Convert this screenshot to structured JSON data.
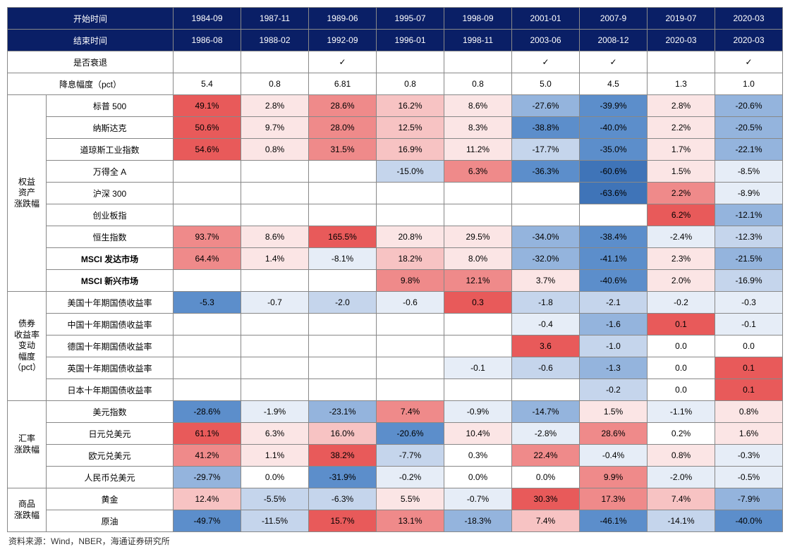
{
  "colors": {
    "header_bg": "#0a1f66",
    "header_fg": "#ffffff",
    "border": "#888888",
    "heatmap": {
      "deep_red": "#e85a5a",
      "mid_red": "#ef8a8a",
      "light_red": "#f7c3c3",
      "pale_red": "#fbe5e5",
      "white": "#ffffff",
      "pale_blue": "#e6edf7",
      "light_blue": "#c5d5ec",
      "mid_blue": "#94b4dd",
      "deep_blue": "#5c8ecb",
      "darker_blue": "#3f74b8"
    }
  },
  "header": {
    "start_label": "开始时间",
    "end_label": "结束时间",
    "start_vals": [
      "1984-09",
      "1987-11",
      "1989-06",
      "1995-07",
      "1998-09",
      "2001-01",
      "2007-9",
      "2019-07",
      "2020-03"
    ],
    "end_vals": [
      "1986-08",
      "1988-02",
      "1992-09",
      "1996-01",
      "1998-11",
      "2003-06",
      "2008-12",
      "2020-03",
      "2020-03"
    ]
  },
  "recession_row": {
    "label": "是否衰退",
    "vals": [
      "",
      "",
      "✓",
      "",
      "",
      "✓",
      "✓",
      "",
      "✓"
    ]
  },
  "cut_row": {
    "label": "降息幅度（pct）",
    "vals": [
      "5.4",
      "0.8",
      "6.81",
      "0.8",
      "0.8",
      "5.0",
      "4.5",
      "1.3",
      "1.0"
    ]
  },
  "groups": [
    {
      "name": "权益\n资产\n涨跌幅",
      "rows": [
        {
          "label": "标普 500",
          "cells": [
            {
              "v": "49.1%",
              "c": "deep_red"
            },
            {
              "v": "2.8%",
              "c": "pale_red"
            },
            {
              "v": "28.6%",
              "c": "mid_red"
            },
            {
              "v": "16.2%",
              "c": "light_red"
            },
            {
              "v": "8.6%",
              "c": "pale_red"
            },
            {
              "v": "-27.6%",
              "c": "mid_blue"
            },
            {
              "v": "-39.9%",
              "c": "deep_blue"
            },
            {
              "v": "2.8%",
              "c": "pale_red"
            },
            {
              "v": "-20.6%",
              "c": "mid_blue"
            }
          ]
        },
        {
          "label": "纳斯达克",
          "cells": [
            {
              "v": "50.6%",
              "c": "deep_red"
            },
            {
              "v": "9.7%",
              "c": "pale_red"
            },
            {
              "v": "28.0%",
              "c": "mid_red"
            },
            {
              "v": "12.5%",
              "c": "light_red"
            },
            {
              "v": "8.3%",
              "c": "pale_red"
            },
            {
              "v": "-38.8%",
              "c": "deep_blue"
            },
            {
              "v": "-40.0%",
              "c": "deep_blue"
            },
            {
              "v": "2.2%",
              "c": "pale_red"
            },
            {
              "v": "-20.5%",
              "c": "mid_blue"
            }
          ]
        },
        {
          "label": "道琼斯工业指数",
          "cells": [
            {
              "v": "54.6%",
              "c": "deep_red"
            },
            {
              "v": "0.8%",
              "c": "pale_red"
            },
            {
              "v": "31.5%",
              "c": "mid_red"
            },
            {
              "v": "16.9%",
              "c": "light_red"
            },
            {
              "v": "11.2%",
              "c": "pale_red"
            },
            {
              "v": "-17.7%",
              "c": "light_blue"
            },
            {
              "v": "-35.0%",
              "c": "deep_blue"
            },
            {
              "v": "1.7%",
              "c": "pale_red"
            },
            {
              "v": "-22.1%",
              "c": "mid_blue"
            }
          ]
        },
        {
          "label": "万得全 A",
          "cells": [
            {
              "v": "",
              "c": "white"
            },
            {
              "v": "",
              "c": "white"
            },
            {
              "v": "",
              "c": "white"
            },
            {
              "v": "-15.0%",
              "c": "light_blue"
            },
            {
              "v": "6.3%",
              "c": "mid_red"
            },
            {
              "v": "-36.3%",
              "c": "deep_blue"
            },
            {
              "v": "-60.6%",
              "c": "darker_blue"
            },
            {
              "v": "1.5%",
              "c": "pale_red"
            },
            {
              "v": "-8.5%",
              "c": "pale_blue"
            }
          ]
        },
        {
          "label": "沪深 300",
          "cells": [
            {
              "v": "",
              "c": "white"
            },
            {
              "v": "",
              "c": "white"
            },
            {
              "v": "",
              "c": "white"
            },
            {
              "v": "",
              "c": "white"
            },
            {
              "v": "",
              "c": "white"
            },
            {
              "v": "",
              "c": "white"
            },
            {
              "v": "-63.6%",
              "c": "darker_blue"
            },
            {
              "v": "2.2%",
              "c": "mid_red"
            },
            {
              "v": "-8.9%",
              "c": "pale_blue"
            }
          ]
        },
        {
          "label": "创业板指",
          "cells": [
            {
              "v": "",
              "c": "white"
            },
            {
              "v": "",
              "c": "white"
            },
            {
              "v": "",
              "c": "white"
            },
            {
              "v": "",
              "c": "white"
            },
            {
              "v": "",
              "c": "white"
            },
            {
              "v": "",
              "c": "white"
            },
            {
              "v": "",
              "c": "white"
            },
            {
              "v": "6.2%",
              "c": "deep_red"
            },
            {
              "v": "-12.1%",
              "c": "mid_blue"
            }
          ]
        },
        {
          "label": "恒生指数",
          "cells": [
            {
              "v": "93.7%",
              "c": "mid_red"
            },
            {
              "v": "8.6%",
              "c": "pale_red"
            },
            {
              "v": "165.5%",
              "c": "deep_red"
            },
            {
              "v": "20.8%",
              "c": "pale_red"
            },
            {
              "v": "29.5%",
              "c": "pale_red"
            },
            {
              "v": "-34.0%",
              "c": "mid_blue"
            },
            {
              "v": "-38.4%",
              "c": "deep_blue"
            },
            {
              "v": "-2.4%",
              "c": "pale_blue"
            },
            {
              "v": "-12.3%",
              "c": "light_blue"
            }
          ]
        },
        {
          "label": "MSCI 发达市场",
          "bold": true,
          "cells": [
            {
              "v": "64.4%",
              "c": "mid_red"
            },
            {
              "v": "1.4%",
              "c": "pale_red"
            },
            {
              "v": "-8.1%",
              "c": "pale_blue"
            },
            {
              "v": "18.2%",
              "c": "light_red"
            },
            {
              "v": "8.0%",
              "c": "pale_red"
            },
            {
              "v": "-32.0%",
              "c": "mid_blue"
            },
            {
              "v": "-41.1%",
              "c": "deep_blue"
            },
            {
              "v": "2.3%",
              "c": "pale_red"
            },
            {
              "v": "-21.5%",
              "c": "mid_blue"
            }
          ]
        },
        {
          "label": "MSCI 新兴市场",
          "bold": true,
          "cells": [
            {
              "v": "",
              "c": "white"
            },
            {
              "v": "",
              "c": "white"
            },
            {
              "v": "",
              "c": "white"
            },
            {
              "v": "9.8%",
              "c": "mid_red"
            },
            {
              "v": "12.1%",
              "c": "mid_red"
            },
            {
              "v": "3.7%",
              "c": "pale_red"
            },
            {
              "v": "-40.6%",
              "c": "deep_blue"
            },
            {
              "v": "2.0%",
              "c": "pale_red"
            },
            {
              "v": "-16.9%",
              "c": "light_blue"
            }
          ]
        }
      ]
    },
    {
      "name": "债券\n收益率\n变动\n幅度\n（pct）",
      "rows": [
        {
          "label": "美国十年期国债收益率",
          "cells": [
            {
              "v": "-5.3",
              "c": "deep_blue"
            },
            {
              "v": "-0.7",
              "c": "pale_blue"
            },
            {
              "v": "-2.0",
              "c": "light_blue"
            },
            {
              "v": "-0.6",
              "c": "pale_blue"
            },
            {
              "v": "0.3",
              "c": "deep_red"
            },
            {
              "v": "-1.8",
              "c": "light_blue"
            },
            {
              "v": "-2.1",
              "c": "light_blue"
            },
            {
              "v": "-0.2",
              "c": "pale_blue"
            },
            {
              "v": "-0.3",
              "c": "pale_blue"
            }
          ]
        },
        {
          "label": "中国十年期国债收益率",
          "cells": [
            {
              "v": "",
              "c": "white"
            },
            {
              "v": "",
              "c": "white"
            },
            {
              "v": "",
              "c": "white"
            },
            {
              "v": "",
              "c": "white"
            },
            {
              "v": "",
              "c": "white"
            },
            {
              "v": "-0.4",
              "c": "pale_blue"
            },
            {
              "v": "-1.6",
              "c": "mid_blue"
            },
            {
              "v": "0.1",
              "c": "deep_red"
            },
            {
              "v": "-0.1",
              "c": "pale_blue"
            }
          ]
        },
        {
          "label": "德国十年期国债收益率",
          "cells": [
            {
              "v": "",
              "c": "white"
            },
            {
              "v": "",
              "c": "white"
            },
            {
              "v": "",
              "c": "white"
            },
            {
              "v": "",
              "c": "white"
            },
            {
              "v": "",
              "c": "white"
            },
            {
              "v": "3.6",
              "c": "deep_red"
            },
            {
              "v": "-1.0",
              "c": "light_blue"
            },
            {
              "v": "0.0",
              "c": "white"
            },
            {
              "v": "0.0",
              "c": "white"
            }
          ]
        },
        {
          "label": "英国十年期国债收益率",
          "cells": [
            {
              "v": "",
              "c": "white"
            },
            {
              "v": "",
              "c": "white"
            },
            {
              "v": "",
              "c": "white"
            },
            {
              "v": "",
              "c": "white"
            },
            {
              "v": "-0.1",
              "c": "pale_blue"
            },
            {
              "v": "-0.6",
              "c": "light_blue"
            },
            {
              "v": "-1.3",
              "c": "mid_blue"
            },
            {
              "v": "0.0",
              "c": "white"
            },
            {
              "v": "0.1",
              "c": "deep_red"
            }
          ]
        },
        {
          "label": "日本十年期国债收益率",
          "cells": [
            {
              "v": "",
              "c": "white"
            },
            {
              "v": "",
              "c": "white"
            },
            {
              "v": "",
              "c": "white"
            },
            {
              "v": "",
              "c": "white"
            },
            {
              "v": "",
              "c": "white"
            },
            {
              "v": "",
              "c": "white"
            },
            {
              "v": "-0.2",
              "c": "light_blue"
            },
            {
              "v": "0.0",
              "c": "white"
            },
            {
              "v": "0.1",
              "c": "deep_red"
            }
          ]
        }
      ]
    },
    {
      "name": "汇率\n涨跌幅",
      "rows": [
        {
          "label": "美元指数",
          "cells": [
            {
              "v": "-28.6%",
              "c": "deep_blue"
            },
            {
              "v": "-1.9%",
              "c": "pale_blue"
            },
            {
              "v": "-23.1%",
              "c": "mid_blue"
            },
            {
              "v": "7.4%",
              "c": "mid_red"
            },
            {
              "v": "-0.9%",
              "c": "pale_blue"
            },
            {
              "v": "-14.7%",
              "c": "mid_blue"
            },
            {
              "v": "1.5%",
              "c": "pale_red"
            },
            {
              "v": "-1.1%",
              "c": "pale_blue"
            },
            {
              "v": "0.8%",
              "c": "pale_red"
            }
          ]
        },
        {
          "label": "日元兑美元",
          "cells": [
            {
              "v": "61.1%",
              "c": "deep_red"
            },
            {
              "v": "6.3%",
              "c": "pale_red"
            },
            {
              "v": "16.0%",
              "c": "light_red"
            },
            {
              "v": "-20.6%",
              "c": "deep_blue"
            },
            {
              "v": "10.4%",
              "c": "pale_red"
            },
            {
              "v": "-2.8%",
              "c": "pale_blue"
            },
            {
              "v": "28.6%",
              "c": "mid_red"
            },
            {
              "v": "0.2%",
              "c": "white"
            },
            {
              "v": "1.6%",
              "c": "pale_red"
            }
          ]
        },
        {
          "label": "欧元兑美元",
          "cells": [
            {
              "v": "41.2%",
              "c": "mid_red"
            },
            {
              "v": "1.1%",
              "c": "pale_red"
            },
            {
              "v": "38.2%",
              "c": "deep_red"
            },
            {
              "v": "-7.7%",
              "c": "light_blue"
            },
            {
              "v": "0.3%",
              "c": "white"
            },
            {
              "v": "22.4%",
              "c": "mid_red"
            },
            {
              "v": "-0.4%",
              "c": "pale_blue"
            },
            {
              "v": "0.8%",
              "c": "pale_red"
            },
            {
              "v": "-0.3%",
              "c": "pale_blue"
            }
          ]
        },
        {
          "label": "人民币兑美元",
          "cells": [
            {
              "v": "-29.7%",
              "c": "mid_blue"
            },
            {
              "v": "0.0%",
              "c": "white"
            },
            {
              "v": "-31.9%",
              "c": "deep_blue"
            },
            {
              "v": "-0.2%",
              "c": "pale_blue"
            },
            {
              "v": "0.0%",
              "c": "white"
            },
            {
              "v": "0.0%",
              "c": "white"
            },
            {
              "v": "9.9%",
              "c": "mid_red"
            },
            {
              "v": "-2.0%",
              "c": "pale_blue"
            },
            {
              "v": "-0.5%",
              "c": "pale_blue"
            }
          ]
        }
      ]
    },
    {
      "name": "商品\n涨跌幅",
      "rows": [
        {
          "label": "黄金",
          "cells": [
            {
              "v": "12.4%",
              "c": "light_red"
            },
            {
              "v": "-5.5%",
              "c": "light_blue"
            },
            {
              "v": "-6.3%",
              "c": "light_blue"
            },
            {
              "v": "5.5%",
              "c": "pale_red"
            },
            {
              "v": "-0.7%",
              "c": "pale_blue"
            },
            {
              "v": "30.3%",
              "c": "deep_red"
            },
            {
              "v": "17.3%",
              "c": "mid_red"
            },
            {
              "v": "7.4%",
              "c": "light_red"
            },
            {
              "v": "-7.9%",
              "c": "mid_blue"
            }
          ]
        },
        {
          "label": "原油",
          "cells": [
            {
              "v": "-49.7%",
              "c": "deep_blue"
            },
            {
              "v": "-11.5%",
              "c": "light_blue"
            },
            {
              "v": "15.7%",
              "c": "deep_red"
            },
            {
              "v": "13.1%",
              "c": "mid_red"
            },
            {
              "v": "-18.3%",
              "c": "mid_blue"
            },
            {
              "v": "7.4%",
              "c": "light_red"
            },
            {
              "v": "-46.1%",
              "c": "deep_blue"
            },
            {
              "v": "-14.1%",
              "c": "light_blue"
            },
            {
              "v": "-40.0%",
              "c": "deep_blue"
            }
          ]
        }
      ]
    }
  ],
  "source": "资料来源：Wind，NBER，海通证券研究所"
}
